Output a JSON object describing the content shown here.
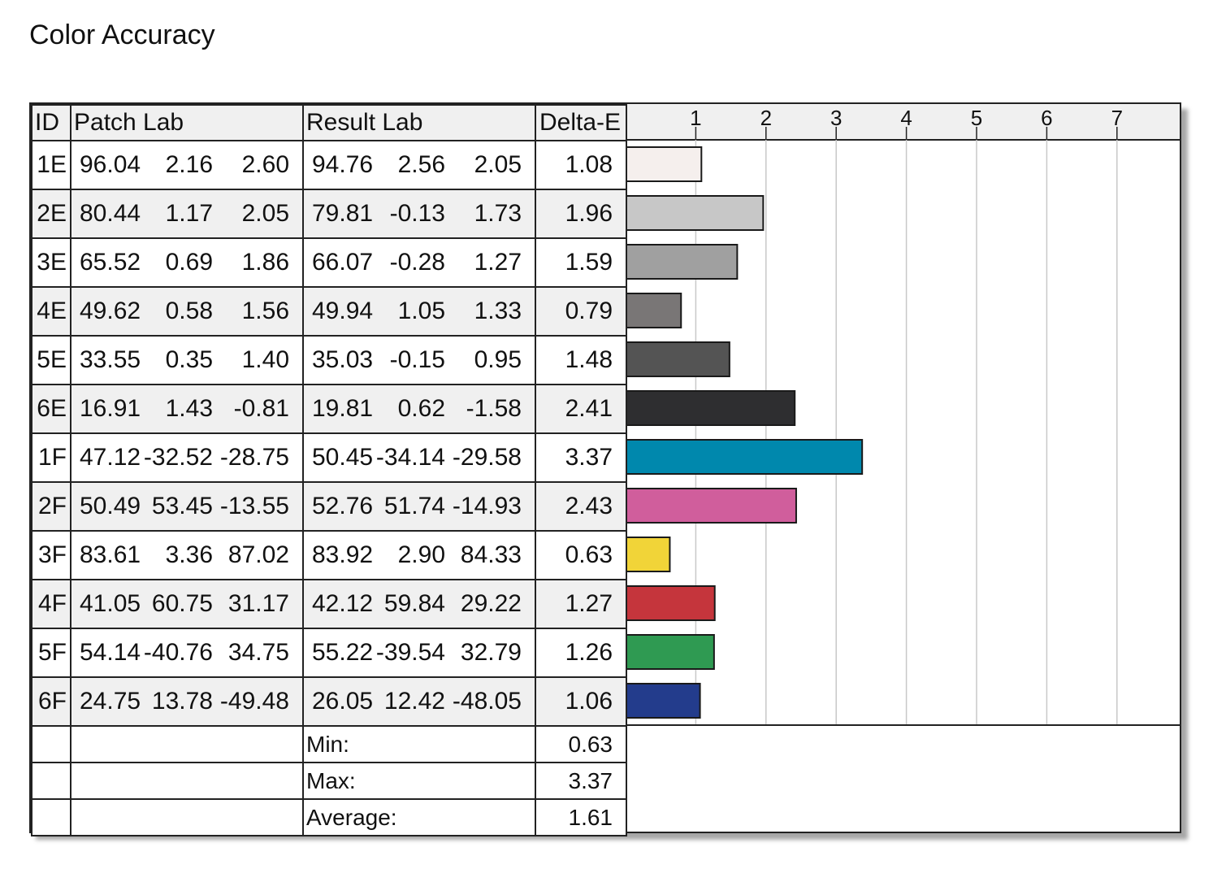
{
  "title": "Color Accuracy",
  "table": {
    "headers": {
      "id": "ID",
      "patch": "Patch Lab",
      "result": "Result Lab",
      "delta": "Delta-E"
    },
    "stats": [
      {
        "label": "Min:",
        "value": "0.63"
      },
      {
        "label": "Max:",
        "value": "3.37"
      },
      {
        "label": "Average:",
        "value": "1.61"
      }
    ]
  },
  "chart_data": {
    "type": "bar",
    "orientation": "horizontal",
    "x_ticks": [
      "1",
      "2",
      "3",
      "4",
      "5",
      "6",
      "7"
    ],
    "xlim": [
      0,
      8
    ],
    "grid": true,
    "rows": [
      {
        "id": "1E",
        "patch": [
          "96.04",
          "2.16",
          "2.60"
        ],
        "result": [
          "94.76",
          "2.56",
          "2.05"
        ],
        "delta": "1.08",
        "value": 1.08,
        "color": "#f5efed"
      },
      {
        "id": "2E",
        "patch": [
          "80.44",
          "1.17",
          "2.05"
        ],
        "result": [
          "79.81",
          "-0.13",
          "1.73"
        ],
        "delta": "1.96",
        "value": 1.96,
        "color": "#c7c7c7"
      },
      {
        "id": "3E",
        "patch": [
          "65.52",
          "0.69",
          "1.86"
        ],
        "result": [
          "66.07",
          "-0.28",
          "1.27"
        ],
        "delta": "1.59",
        "value": 1.59,
        "color": "#a0a0a0"
      },
      {
        "id": "4E",
        "patch": [
          "49.62",
          "0.58",
          "1.56"
        ],
        "result": [
          "49.94",
          "1.05",
          "1.33"
        ],
        "delta": "0.79",
        "value": 0.79,
        "color": "#797676"
      },
      {
        "id": "5E",
        "patch": [
          "33.55",
          "0.35",
          "1.40"
        ],
        "result": [
          "35.03",
          "-0.15",
          "0.95"
        ],
        "delta": "1.48",
        "value": 1.48,
        "color": "#545454"
      },
      {
        "id": "6E",
        "patch": [
          "16.91",
          "1.43",
          "-0.81"
        ],
        "result": [
          "19.81",
          "0.62",
          "-1.58"
        ],
        "delta": "2.41",
        "value": 2.41,
        "color": "#2e2e30"
      },
      {
        "id": "1F",
        "patch": [
          "47.12",
          "-32.52",
          "-28.75"
        ],
        "result": [
          "50.45",
          "-34.14",
          "-29.58"
        ],
        "delta": "3.37",
        "value": 3.37,
        "color": "#0088ad"
      },
      {
        "id": "2F",
        "patch": [
          "50.49",
          "53.45",
          "-13.55"
        ],
        "result": [
          "52.76",
          "51.74",
          "-14.93"
        ],
        "delta": "2.43",
        "value": 2.43,
        "color": "#d05e9c"
      },
      {
        "id": "3F",
        "patch": [
          "83.61",
          "3.36",
          "87.02"
        ],
        "result": [
          "83.92",
          "2.90",
          "84.33"
        ],
        "delta": "0.63",
        "value": 0.63,
        "color": "#f1d438"
      },
      {
        "id": "4F",
        "patch": [
          "41.05",
          "60.75",
          "31.17"
        ],
        "result": [
          "42.12",
          "59.84",
          "29.22"
        ],
        "delta": "1.27",
        "value": 1.27,
        "color": "#c5353c"
      },
      {
        "id": "5F",
        "patch": [
          "54.14",
          "-40.76",
          "34.75"
        ],
        "result": [
          "55.22",
          "-39.54",
          "32.79"
        ],
        "delta": "1.26",
        "value": 1.26,
        "color": "#2f9a52"
      },
      {
        "id": "6F",
        "patch": [
          "24.75",
          "13.78",
          "-49.48"
        ],
        "result": [
          "26.05",
          "12.42",
          "-48.05"
        ],
        "delta": "1.06",
        "value": 1.06,
        "color": "#233c8c"
      }
    ]
  }
}
